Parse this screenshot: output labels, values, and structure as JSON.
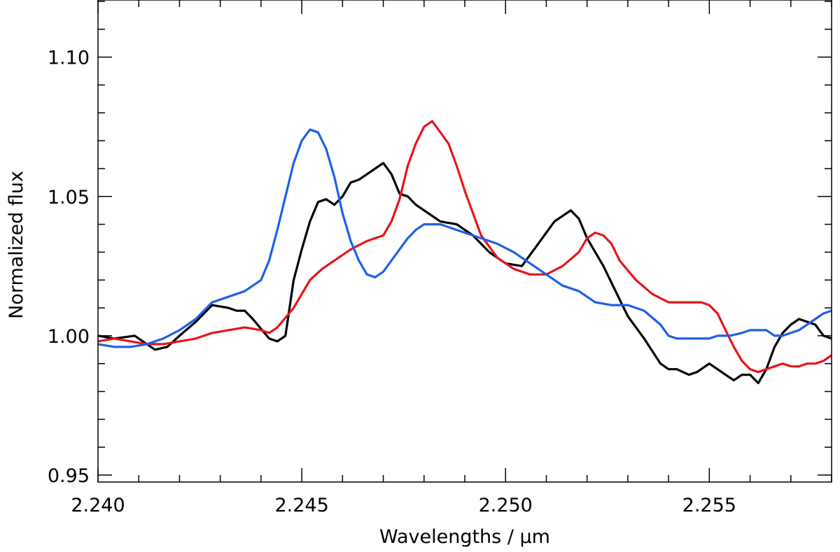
{
  "chart_data": {
    "type": "line",
    "title": "",
    "xlabel": "Wavelengths / μm",
    "ylabel": "Normalized flux",
    "xlim": [
      2.24,
      2.258
    ],
    "ylim": [
      0.9475,
      1.1205
    ],
    "grid": false,
    "x_ticks": [
      {
        "value": 2.24,
        "label": "2.240"
      },
      {
        "value": 2.245,
        "label": "2.245"
      },
      {
        "value": 2.25,
        "label": "2.250"
      },
      {
        "value": 2.255,
        "label": "2.255"
      }
    ],
    "x_minor_step": 0.001,
    "y_ticks": [
      {
        "value": 0.95,
        "label": "0.95"
      },
      {
        "value": 1.0,
        "label": "1.00"
      },
      {
        "value": 1.05,
        "label": "1.05"
      },
      {
        "value": 1.1,
        "label": "1.10"
      }
    ],
    "y_minor_step": 0.01,
    "series": [
      {
        "color": "#000000",
        "x": [
          2.24,
          2.2404,
          2.2409,
          2.2412,
          2.2414,
          2.2417,
          2.242,
          2.2424,
          2.2428,
          2.2432,
          2.2434,
          2.2436,
          2.2438,
          2.2442,
          2.2444,
          2.2446,
          2.2448,
          2.245,
          2.2452,
          2.2454,
          2.2456,
          2.2458,
          2.246,
          2.2462,
          2.2464,
          2.2466,
          2.2468,
          2.247,
          2.2472,
          2.2474,
          2.2476,
          2.2478,
          2.248,
          2.2484,
          2.2488,
          2.2492,
          2.2496,
          2.25,
          2.2504,
          2.2508,
          2.2512,
          2.2516,
          2.2518,
          2.252,
          2.2524,
          2.2528,
          2.253,
          2.2534,
          2.2538,
          2.254,
          2.2542,
          2.2545,
          2.2547,
          2.255,
          2.2552,
          2.2554,
          2.2556,
          2.2558,
          2.256,
          2.2562,
          2.2564,
          2.2566,
          2.2568,
          2.257,
          2.2572,
          2.2574,
          2.2576,
          2.2578,
          2.258
        ],
        "y": [
          1.0,
          0.999,
          1.0,
          0.997,
          0.995,
          0.996,
          1.0,
          1.005,
          1.011,
          1.01,
          1.009,
          1.009,
          1.006,
          0.999,
          0.998,
          1.0,
          1.02,
          1.031,
          1.041,
          1.048,
          1.049,
          1.047,
          1.05,
          1.055,
          1.056,
          1.058,
          1.06,
          1.062,
          1.058,
          1.051,
          1.05,
          1.047,
          1.045,
          1.041,
          1.04,
          1.036,
          1.03,
          1.026,
          1.025,
          1.033,
          1.041,
          1.045,
          1.042,
          1.035,
          1.025,
          1.013,
          1.007,
          0.999,
          0.99,
          0.988,
          0.988,
          0.986,
          0.987,
          0.99,
          0.988,
          0.986,
          0.984,
          0.986,
          0.986,
          0.983,
          0.988,
          0.996,
          1.001,
          1.004,
          1.006,
          1.005,
          1.004,
          1.0,
          0.999
        ]
      },
      {
        "color": "#e8141a",
        "x": [
          2.24,
          2.2404,
          2.2408,
          2.2412,
          2.2416,
          2.242,
          2.2424,
          2.2428,
          2.2432,
          2.2436,
          2.244,
          2.2442,
          2.2444,
          2.2448,
          2.2452,
          2.2455,
          2.2458,
          2.2462,
          2.2466,
          2.247,
          2.2472,
          2.2474,
          2.2476,
          2.2478,
          2.248,
          2.2482,
          2.2484,
          2.2486,
          2.2488,
          2.249,
          2.2494,
          2.2498,
          2.2502,
          2.2506,
          2.251,
          2.2514,
          2.2518,
          2.252,
          2.2522,
          2.2524,
          2.2526,
          2.2528,
          2.2532,
          2.2536,
          2.254,
          2.2544,
          2.2548,
          2.255,
          2.2552,
          2.2554,
          2.2556,
          2.2558,
          2.256,
          2.2562,
          2.2564,
          2.2566,
          2.2568,
          2.257,
          2.2572,
          2.2574,
          2.2576,
          2.2578,
          2.258
        ],
        "y": [
          0.998,
          0.999,
          0.998,
          0.997,
          0.997,
          0.998,
          0.999,
          1.001,
          1.002,
          1.003,
          1.002,
          1.001,
          1.003,
          1.01,
          1.02,
          1.024,
          1.027,
          1.031,
          1.034,
          1.036,
          1.041,
          1.049,
          1.061,
          1.069,
          1.075,
          1.077,
          1.073,
          1.069,
          1.061,
          1.052,
          1.036,
          1.028,
          1.024,
          1.022,
          1.022,
          1.025,
          1.03,
          1.035,
          1.037,
          1.036,
          1.033,
          1.027,
          1.02,
          1.015,
          1.012,
          1.012,
          1.012,
          1.011,
          1.008,
          1.002,
          0.996,
          0.991,
          0.988,
          0.987,
          0.988,
          0.989,
          0.99,
          0.989,
          0.989,
          0.99,
          0.99,
          0.991,
          0.993
        ]
      },
      {
        "color": "#1f5fe8",
        "x": [
          2.24,
          2.2404,
          2.2408,
          2.2412,
          2.2416,
          2.242,
          2.2424,
          2.2428,
          2.2432,
          2.2436,
          2.244,
          2.2442,
          2.2444,
          2.2446,
          2.2448,
          2.245,
          2.2452,
          2.2454,
          2.2456,
          2.2458,
          2.246,
          2.2462,
          2.2464,
          2.2466,
          2.2468,
          2.247,
          2.2472,
          2.2474,
          2.2476,
          2.2478,
          2.248,
          2.2482,
          2.2484,
          2.2486,
          2.2488,
          2.249,
          2.2494,
          2.2498,
          2.2502,
          2.2506,
          2.251,
          2.2514,
          2.2518,
          2.2522,
          2.2526,
          2.253,
          2.2534,
          2.2538,
          2.254,
          2.2542,
          2.2545,
          2.2548,
          2.255,
          2.2552,
          2.2555,
          2.2558,
          2.256,
          2.2562,
          2.2564,
          2.2566,
          2.2568,
          2.257,
          2.2572,
          2.2574,
          2.2576,
          2.2578,
          2.258
        ],
        "y": [
          0.997,
          0.996,
          0.996,
          0.997,
          0.999,
          1.002,
          1.006,
          1.012,
          1.014,
          1.016,
          1.02,
          1.027,
          1.038,
          1.05,
          1.062,
          1.07,
          1.074,
          1.073,
          1.067,
          1.057,
          1.044,
          1.034,
          1.027,
          1.022,
          1.021,
          1.023,
          1.027,
          1.031,
          1.035,
          1.038,
          1.04,
          1.04,
          1.04,
          1.039,
          1.038,
          1.037,
          1.035,
          1.033,
          1.03,
          1.026,
          1.022,
          1.018,
          1.016,
          1.012,
          1.011,
          1.011,
          1.009,
          1.004,
          1.0,
          0.999,
          0.999,
          0.999,
          0.999,
          1.0,
          1.0,
          1.001,
          1.002,
          1.002,
          1.002,
          1.0,
          1.0,
          1.001,
          1.002,
          1.004,
          1.006,
          1.008,
          1.009
        ]
      }
    ]
  }
}
